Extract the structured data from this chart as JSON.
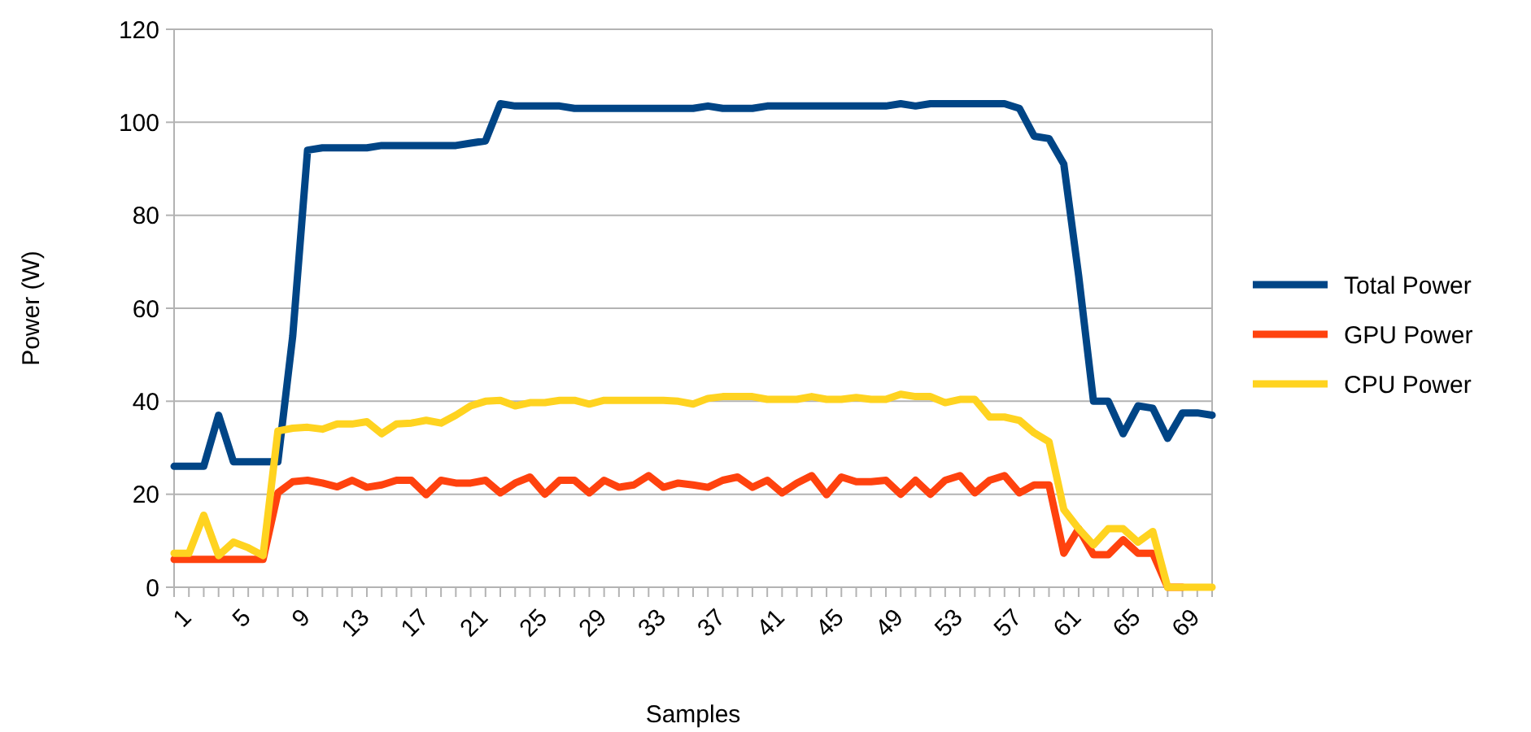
{
  "chart_data": {
    "type": "line",
    "xlabel": "Samples",
    "ylabel": "Power (W)",
    "categories": [
      "1",
      null,
      null,
      null,
      "5",
      null,
      null,
      null,
      "9",
      null,
      null,
      null,
      "13",
      null,
      null,
      null,
      "17",
      null,
      null,
      null,
      "21",
      null,
      null,
      null,
      "25",
      null,
      null,
      null,
      "29",
      null,
      null,
      null,
      "33",
      null,
      null,
      null,
      "37",
      null,
      null,
      null,
      "41",
      null,
      null,
      null,
      "45",
      null,
      null,
      null,
      "49",
      null,
      null,
      null,
      "53",
      null,
      null,
      null,
      "57",
      null,
      null,
      null,
      "61",
      null,
      null,
      null,
      "65",
      null,
      null,
      null,
      "69",
      null,
      null
    ],
    "series": [
      {
        "name": "Total Power",
        "color": "#004586",
        "values": [
          26,
          26,
          26,
          37,
          27,
          27,
          27,
          27,
          54,
          94,
          94.5,
          94.5,
          94.5,
          94.5,
          95,
          95,
          95,
          95,
          95,
          95,
          95.5,
          96,
          104,
          103.5,
          103.5,
          103.5,
          103.5,
          103,
          103,
          103,
          103,
          103,
          103,
          103,
          103,
          103,
          103.5,
          103,
          103,
          103,
          103.5,
          103.5,
          103.5,
          103.5,
          103.5,
          103.5,
          103.5,
          103.5,
          103.5,
          104,
          103.5,
          104,
          104,
          104,
          104,
          104,
          104,
          103,
          97,
          96.5,
          91,
          67,
          40,
          40,
          33,
          39,
          38.5,
          32,
          37.5,
          37.5,
          37
        ]
      },
      {
        "name": "GPU Power",
        "color": "#ff420e",
        "values": [
          6,
          6,
          6,
          6,
          6,
          6,
          6,
          20.3,
          22.7,
          23,
          22.4,
          21.6,
          23,
          21.5,
          22,
          23,
          23,
          19.9,
          23,
          22.4,
          22.4,
          23,
          20.3,
          22.4,
          23.7,
          20,
          23,
          23,
          20.3,
          23,
          21.5,
          22,
          24,
          21.5,
          22.4,
          22,
          21.5,
          23,
          23.7,
          21.5,
          23,
          20.3,
          22.4,
          24,
          19.9,
          23.7,
          22.7,
          22.7,
          23,
          20,
          23,
          20,
          23,
          24,
          20.3,
          23,
          24,
          20.3,
          22,
          22,
          7.3,
          12.6,
          7,
          7,
          10.2,
          7.3,
          7.3,
          0,
          0,
          null,
          null
        ]
      },
      {
        "name": "CPU Power",
        "color": "#ffd320",
        "values": [
          7.3,
          7.3,
          15.5,
          6.8,
          9.7,
          8.5,
          6.8,
          33.6,
          34.2,
          34.4,
          34,
          35.1,
          35.1,
          35.6,
          33,
          35.1,
          35.3,
          35.9,
          35.3,
          37,
          39,
          40,
          40.2,
          39,
          39.7,
          39.7,
          40.2,
          40.2,
          39.4,
          40.2,
          40.2,
          40.2,
          40.2,
          40.2,
          40,
          39.4,
          40.6,
          41,
          41,
          41,
          40.4,
          40.4,
          40.4,
          41,
          40.4,
          40.4,
          40.8,
          40.4,
          40.4,
          41.5,
          41,
          41,
          39.7,
          40.4,
          40.4,
          36.6,
          36.6,
          35.9,
          33.2,
          31.3,
          16.7,
          12.6,
          9.1,
          12.6,
          12.6,
          9.7,
          12,
          0,
          0,
          0,
          0
        ]
      }
    ],
    "ylim": [
      0,
      120
    ],
    "yticks": [
      0,
      20,
      40,
      60,
      80,
      100,
      120
    ],
    "grid": "y",
    "legend": "right",
    "marker": "none",
    "line_style": "solid"
  }
}
